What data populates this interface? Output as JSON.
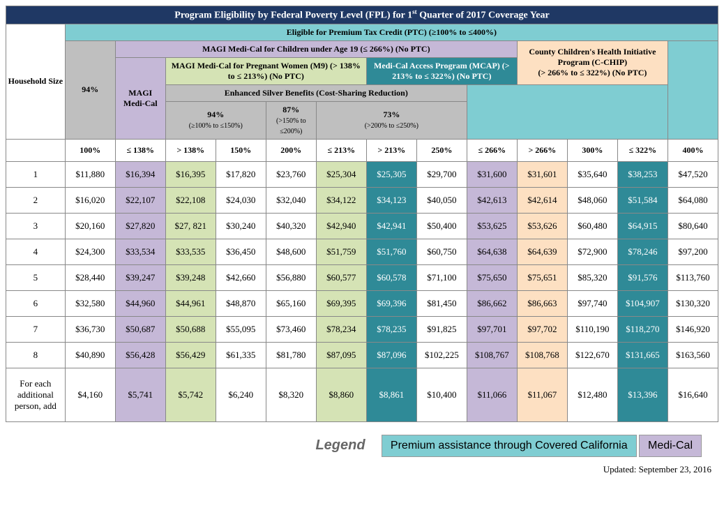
{
  "title": "Program Eligibility by Federal Poverty Level (FPL) for 1st Quarter of 2017 Coverage Year",
  "ptc_header": "Eligible for Premium Tax Credit (PTC) (≥100% to ≤400%)",
  "household_label": "Household Size",
  "programs": {
    "magi_children": "MAGI Medi-Cal for Children under Age 19 (≤ 266%) (No PTC)",
    "cchip_line1": "County Children's Health Initiative Program (C-CHIP)",
    "cchip_line2": "(> 266% to ≤ 322%) (No PTC)",
    "magi_medical": "MAGI Medi-Cal",
    "pregnant": "MAGI Medi-Cal for Pregnant Women (M9) (> 138% to ≤ 213%) (No PTC)",
    "mcap": "Medi-Cal Access Program (MCAP) (> 213% to ≤ 322%) (No PTC)",
    "enhanced": "Enhanced Silver Benefits (Cost-Sharing Reduction)"
  },
  "silver": {
    "s94": "94%",
    "s94_sub": "94%",
    "s94_range": "(≥100% to ≤150%)",
    "s87": "87%",
    "s87_range": "(>150% to ≤200%)",
    "s73": "73%",
    "s73_range": "(>200% to ≤250%)"
  },
  "col_headers": [
    "100%",
    "≤ 138%",
    "> 138%",
    "150%",
    "200%",
    "≤ 213%",
    "> 213%",
    "250%",
    "≤ 266%",
    "> 266%",
    "300%",
    "≤ 322%",
    "400%"
  ],
  "rows": [
    {
      "label": "1",
      "vals": [
        "$11,880",
        "$16,394",
        "$16,395",
        "$17,820",
        "$23,760",
        "$25,304",
        "$25,305",
        "$29,700",
        "$31,600",
        "$31,601",
        "$35,640",
        "$38,253",
        "$47,520"
      ]
    },
    {
      "label": "2",
      "vals": [
        "$16,020",
        "$22,107",
        "$22,108",
        "$24,030",
        "$32,040",
        "$34,122",
        "$34,123",
        "$40,050",
        "$42,613",
        "$42,614",
        "$48,060",
        "$51,584",
        "$64,080"
      ]
    },
    {
      "label": "3",
      "vals": [
        "$20,160",
        "$27,820",
        "$27, 821",
        "$30,240",
        "$40,320",
        "$42,940",
        "$42,941",
        "$50,400",
        "$53,625",
        "$53,626",
        "$60,480",
        "$64,915",
        "$80,640"
      ]
    },
    {
      "label": "4",
      "vals": [
        "$24,300",
        "$33,534",
        "$33,535",
        "$36,450",
        "$48,600",
        "$51,759",
        "$51,760",
        "$60,750",
        "$64,638",
        "$64,639",
        "$72,900",
        "$78,246",
        "$97,200"
      ]
    },
    {
      "label": "5",
      "vals": [
        "$28,440",
        "$39,247",
        "$39,248",
        "$42,660",
        "$56,880",
        "$60,577",
        "$60,578",
        "$71,100",
        "$75,650",
        "$75,651",
        "$85,320",
        "$91,576",
        "$113,760"
      ]
    },
    {
      "label": "6",
      "vals": [
        "$32,580",
        "$44,960",
        "$44,961",
        "$48,870",
        "$65,160",
        "$69,395",
        "$69,396",
        "$81,450",
        "$86,662",
        "$86,663",
        "$97,740",
        "$104,907",
        "$130,320"
      ]
    },
    {
      "label": "7",
      "vals": [
        "$36,730",
        "$50,687",
        "$50,688",
        "$55,095",
        "$73,460",
        "$78,234",
        "$78,235",
        "$91,825",
        "$97,701",
        "$97,702",
        "$110,190",
        "$118,270",
        "$146,920"
      ]
    },
    {
      "label": "8",
      "vals": [
        "$40,890",
        "$56,428",
        "$56,429",
        "$61,335",
        "$81,780",
        "$87,095",
        "$87,096",
        "$102,225",
        "$108,767",
        "$108,768",
        "$122,670",
        "$131,665",
        "$163,560"
      ]
    },
    {
      "label": "For each additional person, add",
      "vals": [
        "$4,160",
        "$5,741",
        "$5,742",
        "$6,240",
        "$8,320",
        "$8,860",
        "$8,861",
        "$10,400",
        "$11,066",
        "$11,067",
        "$12,480",
        "$13,396",
        "$16,640"
      ]
    }
  ],
  "col_colors": [
    "",
    "c-purple",
    "c-green",
    "",
    "",
    "c-green",
    "c-teal",
    "",
    "c-purple",
    "c-peach",
    "",
    "c-teal",
    ""
  ],
  "legend": {
    "label": "Legend",
    "covered_ca": "Premium assistance through Covered California",
    "medical": "Medi-Cal"
  },
  "updated": "Updated:  September 23, 2016",
  "colors": {
    "navy": "#1f3864",
    "teal_light": "#7fcdd2",
    "purple": "#c5b8d7",
    "peach": "#fde0c2",
    "green": "#d5e3b5",
    "teal_dark": "#2f8a97",
    "gray": "#bfbfbf"
  }
}
